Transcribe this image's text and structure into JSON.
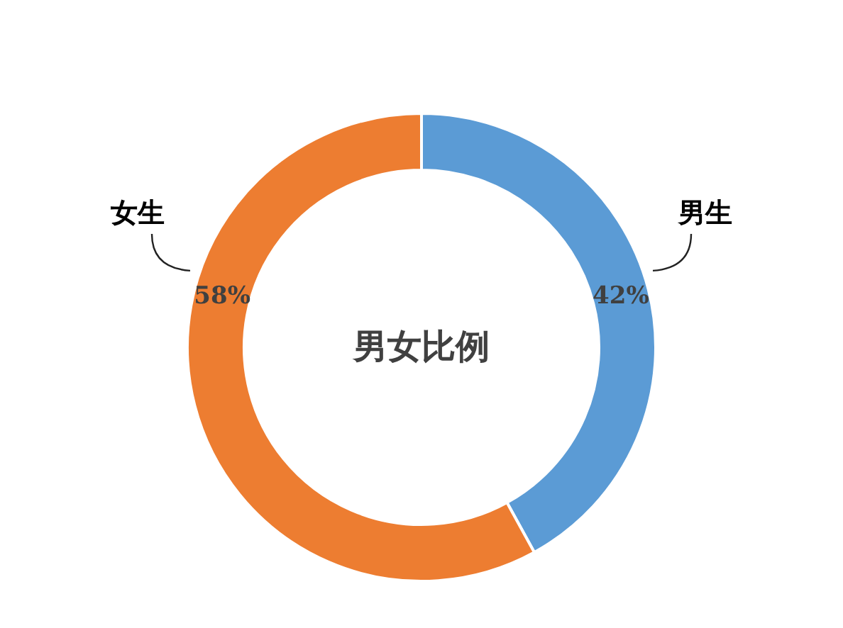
{
  "chart_data": {
    "type": "donut",
    "title": "男女比例",
    "categories": [
      "男生",
      "女生"
    ],
    "values": [
      42,
      58
    ],
    "colors": [
      "#5b9bd5",
      "#ed7d31"
    ],
    "value_labels": [
      "42%",
      "58%"
    ]
  }
}
